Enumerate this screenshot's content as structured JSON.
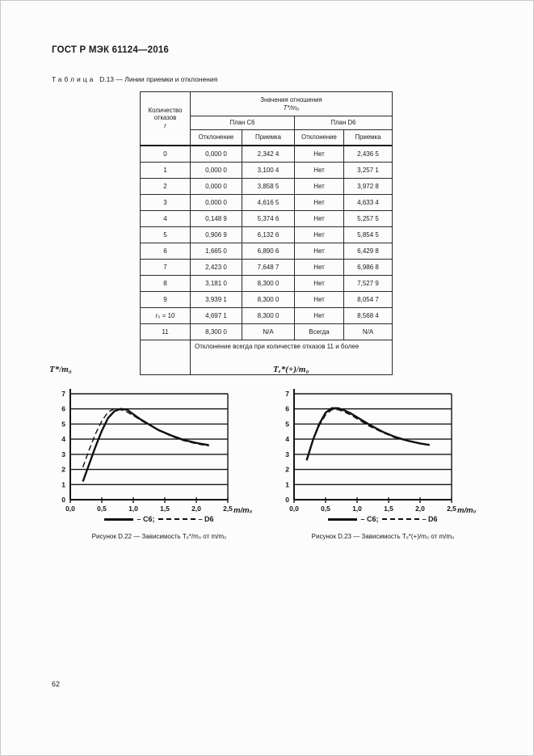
{
  "page": {
    "header_title": "ГОСТ Р МЭК 61124—2016",
    "page_number": "62"
  },
  "table": {
    "caption_word": "Таблица",
    "caption_number": "D.13",
    "caption_rest": "— Линии приемки и отклонения",
    "header": {
      "failures_line1": "Количество",
      "failures_line2": "отказов",
      "failures_symbol": "r",
      "values_title": "Значения отношения",
      "values_formula": "T*/m₀",
      "plan_c6": "План C6",
      "plan_d6": "План D6",
      "rejection": "Отклонение",
      "acceptance": "Приемка"
    },
    "rows": [
      [
        "0",
        "0,000 0",
        "2,342 4",
        "Нет",
        "2,436 5"
      ],
      [
        "1",
        "0,000 0",
        "3,100 4",
        "Нет",
        "3,257 1"
      ],
      [
        "2",
        "0,000 0",
        "3,858 5",
        "Нет",
        "3,972 8"
      ],
      [
        "3",
        "0,000 0",
        "4,616 5",
        "Нет",
        "4,633 4"
      ],
      [
        "4",
        "0,148 9",
        "5,374 6",
        "Нет",
        "5,257 5"
      ],
      [
        "5",
        "0,906 9",
        "6,132 6",
        "Нет",
        "5,854 5"
      ],
      [
        "6",
        "1,665 0",
        "6,890 6",
        "Нет",
        "6,429 8"
      ],
      [
        "7",
        "2,423 0",
        "7,648 7",
        "Нет",
        "6,986 8"
      ],
      [
        "8",
        "3,181 0",
        "8,300 0",
        "Нет",
        "7,527 9"
      ],
      [
        "9",
        "3,939 1",
        "8,300 0",
        "Нет",
        "8,054 7"
      ],
      [
        "r₀ = 10",
        "4,697 1",
        "8,300 0",
        "Нет",
        "8,568 4"
      ],
      [
        "11",
        "8,300 0",
        "N/A",
        "Всегда",
        "N/A"
      ]
    ],
    "footer_note": "Отклонение всегда при количестве отказов 11 и более"
  },
  "chart_data": [
    {
      "type": "line",
      "title": "Рисунок D.22 — Зависимость Tₑ*/m₀ от m/m₀",
      "ylabel": "T*/m₀",
      "xlabel": "m/m₀",
      "xlim": [
        0,
        2.5
      ],
      "ylim": [
        0,
        7
      ],
      "x_ticks": [
        "0,0",
        "0,5",
        "1,0",
        "1,5",
        "2,0",
        "2,5"
      ],
      "y_ticks": [
        "0",
        "1",
        "2",
        "3",
        "4",
        "5",
        "6",
        "7"
      ],
      "grid": true,
      "legend_position": "bottom",
      "series": [
        {
          "name": "C6",
          "style": "solid",
          "label": "– C6;",
          "points": [
            [
              0.2,
              1.2
            ],
            [
              0.3,
              2.35
            ],
            [
              0.4,
              3.5
            ],
            [
              0.5,
              4.55
            ],
            [
              0.6,
              5.4
            ],
            [
              0.7,
              5.85
            ],
            [
              0.8,
              6.0
            ],
            [
              0.9,
              5.95
            ],
            [
              1.0,
              5.65
            ],
            [
              1.1,
              5.35
            ],
            [
              1.2,
              5.1
            ],
            [
              1.4,
              4.6
            ],
            [
              1.6,
              4.25
            ],
            [
              1.8,
              3.95
            ],
            [
              2.0,
              3.75
            ],
            [
              2.2,
              3.6
            ]
          ]
        },
        {
          "name": "D6",
          "style": "dashed",
          "label": "– D6",
          "points": [
            [
              0.2,
              2.15
            ],
            [
              0.3,
              3.3
            ],
            [
              0.4,
              4.35
            ],
            [
              0.5,
              5.2
            ],
            [
              0.6,
              5.8
            ],
            [
              0.7,
              6.0
            ],
            [
              0.8,
              5.95
            ],
            [
              0.9,
              5.8
            ],
            [
              1.0,
              5.55
            ],
            [
              1.1,
              5.3
            ],
            [
              1.2,
              5.05
            ],
            [
              1.4,
              4.6
            ],
            [
              1.6,
              4.2
            ],
            [
              1.8,
              3.9
            ],
            [
              2.0,
              3.7
            ],
            [
              2.2,
              3.55
            ]
          ]
        }
      ]
    },
    {
      "type": "line",
      "title": "Рисунок D.23 — Зависимость Tₑ*(+)/m₀ от m/m₀",
      "ylabel": "Tₑ*(+)/m₀",
      "xlabel": "m/m₀",
      "xlim": [
        0,
        2.5
      ],
      "ylim": [
        0,
        7
      ],
      "x_ticks": [
        "0,0",
        "0,5",
        "1,0",
        "1,5",
        "2,0",
        "2,5"
      ],
      "y_ticks": [
        "0",
        "1",
        "2",
        "3",
        "4",
        "5",
        "6",
        "7"
      ],
      "grid": true,
      "legend_position": "bottom",
      "series": [
        {
          "name": "C6",
          "style": "solid",
          "label": "– C6;",
          "points": [
            [
              0.2,
              2.6
            ],
            [
              0.3,
              3.95
            ],
            [
              0.4,
              5.0
            ],
            [
              0.5,
              5.75
            ],
            [
              0.6,
              6.05
            ],
            [
              0.7,
              6.05
            ],
            [
              0.8,
              5.9
            ],
            [
              0.9,
              5.7
            ],
            [
              1.0,
              5.45
            ],
            [
              1.2,
              4.95
            ],
            [
              1.4,
              4.5
            ],
            [
              1.6,
              4.15
            ],
            [
              1.8,
              3.9
            ],
            [
              2.0,
              3.72
            ],
            [
              2.15,
              3.62
            ]
          ]
        },
        {
          "name": "D6",
          "style": "dashed",
          "label": "– D6",
          "points": [
            [
              0.2,
              2.6
            ],
            [
              0.3,
              3.9
            ],
            [
              0.4,
              4.9
            ],
            [
              0.5,
              5.6
            ],
            [
              0.6,
              5.95
            ],
            [
              0.7,
              5.95
            ],
            [
              0.8,
              5.8
            ],
            [
              0.9,
              5.6
            ],
            [
              1.0,
              5.35
            ],
            [
              1.2,
              4.85
            ],
            [
              1.4,
              4.45
            ],
            [
              1.6,
              4.1
            ],
            [
              1.8,
              3.88
            ],
            [
              2.0,
              3.7
            ],
            [
              2.15,
              3.6
            ]
          ]
        }
      ]
    }
  ]
}
